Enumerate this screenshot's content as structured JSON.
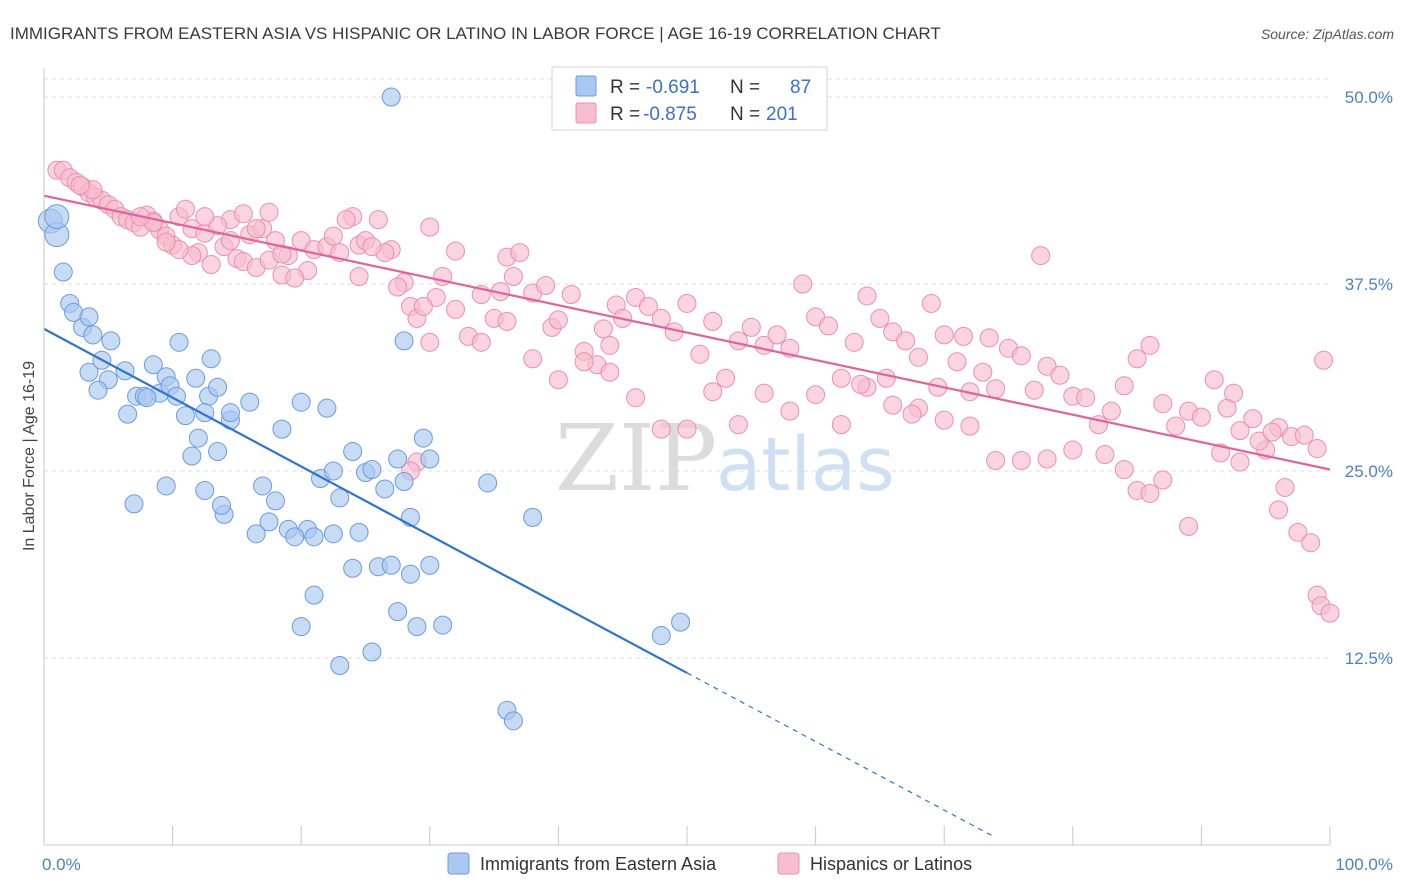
{
  "chart_data": {
    "type": "scatter",
    "title": "IMMIGRANTS FROM EASTERN ASIA VS HISPANIC OR LATINO IN LABOR FORCE | AGE 16-19 CORRELATION CHART",
    "source": "Source: ZipAtlas.com",
    "ylabel": "In Labor Force | Age 16-19",
    "xlim": [
      0,
      100
    ],
    "ylim": [
      0,
      52
    ],
    "x_tick_labels": [
      "0.0%",
      "100.0%"
    ],
    "y_ticks": [
      {
        "value": 12.5,
        "label": "12.5%"
      },
      {
        "value": 25.0,
        "label": "25.0%"
      },
      {
        "value": 37.5,
        "label": "37.5%"
      },
      {
        "value": 50.0,
        "label": "50.0%"
      }
    ],
    "watermark": {
      "zip": "ZIP",
      "atlas": "atlas"
    },
    "legend": {
      "rows": [
        {
          "r_label": "R = ",
          "r_value": "-0.691",
          "n_label": "N = ",
          "n_value": "87"
        },
        {
          "r_label": "R = ",
          "r_value": "-0.875",
          "n_label": "N = ",
          "n_value": "201"
        }
      ]
    },
    "series": [
      {
        "name": "Immigrants from Eastern Asia",
        "fill": "#a9c7ef",
        "stroke": "#6b9be0",
        "line_color": "#2f74d0",
        "trend": {
          "x1": 0,
          "y1": 34.5,
          "x2": 50,
          "y2": 11.5,
          "dash_to_x": 74,
          "dash_to_y": 0.5
        },
        "points": [
          [
            0.5,
            41.7
          ],
          [
            1.0,
            40.8
          ],
          [
            1.5,
            38.3
          ],
          [
            2.0,
            36.2
          ],
          [
            2.3,
            35.6
          ],
          [
            3.0,
            34.6
          ],
          [
            3.8,
            34.1
          ],
          [
            5.2,
            33.7
          ],
          [
            3.5,
            31.6
          ],
          [
            4.5,
            32.4
          ],
          [
            5.0,
            31.1
          ],
          [
            4.2,
            30.4
          ],
          [
            6.3,
            31.7
          ],
          [
            7.2,
            30.0
          ],
          [
            7.8,
            30.0
          ],
          [
            8.5,
            32.1
          ],
          [
            9.5,
            31.3
          ],
          [
            10.5,
            33.6
          ],
          [
            11.8,
            31.2
          ],
          [
            9.0,
            30.2
          ],
          [
            9.8,
            30.7
          ],
          [
            10.3,
            30.0
          ],
          [
            12.8,
            30.0
          ],
          [
            13.5,
            30.6
          ],
          [
            6.5,
            28.8
          ],
          [
            11.0,
            28.7
          ],
          [
            12.5,
            28.9
          ],
          [
            14.5,
            28.4
          ],
          [
            16.0,
            29.6
          ],
          [
            18.5,
            27.8
          ],
          [
            20.0,
            29.6
          ],
          [
            22.0,
            29.2
          ],
          [
            12.0,
            27.2
          ],
          [
            11.5,
            26.0
          ],
          [
            13.5,
            26.3
          ],
          [
            21.5,
            24.5
          ],
          [
            24.0,
            26.3
          ],
          [
            22.5,
            25.0
          ],
          [
            25.0,
            24.9
          ],
          [
            23.0,
            23.2
          ],
          [
            9.5,
            24.0
          ],
          [
            12.5,
            23.7
          ],
          [
            14.0,
            22.1
          ],
          [
            13.8,
            22.7
          ],
          [
            18.0,
            23.0
          ],
          [
            17.5,
            21.6
          ],
          [
            19.0,
            21.1
          ],
          [
            20.5,
            21.1
          ],
          [
            7.0,
            22.8
          ],
          [
            16.5,
            20.8
          ],
          [
            19.5,
            20.6
          ],
          [
            21.0,
            20.6
          ],
          [
            22.5,
            20.8
          ],
          [
            24.5,
            20.9
          ],
          [
            25.5,
            25.1
          ],
          [
            26.5,
            23.8
          ],
          [
            28.5,
            21.9
          ],
          [
            27.5,
            25.8
          ],
          [
            28.0,
            24.3
          ],
          [
            30.0,
            25.8
          ],
          [
            29.5,
            27.2
          ],
          [
            24.0,
            18.5
          ],
          [
            26.0,
            18.6
          ],
          [
            27.0,
            18.7
          ],
          [
            28.5,
            18.1
          ],
          [
            30.0,
            18.7
          ],
          [
            21.0,
            16.7
          ],
          [
            27.5,
            15.6
          ],
          [
            20.0,
            14.6
          ],
          [
            23.0,
            12.0
          ],
          [
            25.5,
            12.9
          ],
          [
            31.0,
            14.7
          ],
          [
            29.0,
            14.6
          ],
          [
            48.0,
            14.0
          ],
          [
            49.5,
            14.9
          ],
          [
            38.0,
            21.9
          ],
          [
            34.5,
            24.2
          ],
          [
            28.0,
            33.7
          ],
          [
            13.0,
            32.5
          ],
          [
            14.5,
            28.9
          ],
          [
            1.0,
            42.0
          ],
          [
            3.5,
            35.3
          ],
          [
            8.0,
            29.9
          ],
          [
            17.0,
            24.0
          ],
          [
            36.0,
            9.0
          ],
          [
            36.5,
            8.3
          ],
          [
            27.0,
            50.0
          ]
        ]
      },
      {
        "name": "Hispanics or Latinos",
        "fill": "#f7bdd0",
        "stroke": "#ec8fae",
        "line_color": "#e0649a",
        "trend": {
          "x1": 0,
          "y1": 43.4,
          "x2": 100,
          "y2": 25.1
        },
        "points": [
          [
            1.0,
            45.1
          ],
          [
            1.5,
            45.1
          ],
          [
            2.0,
            44.6
          ],
          [
            2.5,
            44.3
          ],
          [
            3.0,
            44.0
          ],
          [
            3.5,
            43.6
          ],
          [
            4.0,
            43.3
          ],
          [
            4.5,
            43.1
          ],
          [
            5.0,
            42.8
          ],
          [
            5.5,
            42.5
          ],
          [
            6.0,
            42.0
          ],
          [
            6.5,
            41.8
          ],
          [
            7.0,
            41.6
          ],
          [
            7.5,
            41.3
          ],
          [
            8.0,
            42.1
          ],
          [
            8.5,
            41.7
          ],
          [
            9.0,
            41.1
          ],
          [
            9.5,
            40.7
          ],
          [
            10.0,
            40.1
          ],
          [
            10.5,
            42.0
          ],
          [
            11.0,
            42.5
          ],
          [
            11.5,
            41.2
          ],
          [
            12.0,
            39.6
          ],
          [
            12.5,
            40.9
          ],
          [
            13.0,
            38.8
          ],
          [
            14.0,
            40.0
          ],
          [
            14.5,
            41.8
          ],
          [
            15.0,
            39.2
          ],
          [
            15.5,
            39.0
          ],
          [
            16.0,
            40.8
          ],
          [
            16.5,
            38.6
          ],
          [
            17.0,
            41.2
          ],
          [
            17.5,
            39.1
          ],
          [
            18.0,
            40.4
          ],
          [
            18.5,
            38.1
          ],
          [
            19.0,
            39.4
          ],
          [
            20.0,
            40.4
          ],
          [
            21.0,
            39.8
          ],
          [
            22.0,
            40.0
          ],
          [
            23.0,
            39.6
          ],
          [
            24.0,
            42.0
          ],
          [
            24.5,
            40.1
          ],
          [
            25.0,
            40.4
          ],
          [
            26.0,
            41.8
          ],
          [
            27.0,
            39.8
          ],
          [
            28.0,
            37.6
          ],
          [
            28.5,
            36.0
          ],
          [
            29.0,
            35.2
          ],
          [
            30.0,
            33.6
          ],
          [
            30.5,
            36.6
          ],
          [
            31.0,
            38.0
          ],
          [
            32.0,
            35.8
          ],
          [
            33.0,
            34.0
          ],
          [
            34.0,
            33.6
          ],
          [
            35.0,
            35.2
          ],
          [
            35.5,
            37.0
          ],
          [
            36.0,
            39.3
          ],
          [
            36.5,
            38.0
          ],
          [
            37.0,
            39.6
          ],
          [
            38.0,
            36.9
          ],
          [
            39.0,
            37.4
          ],
          [
            39.5,
            34.6
          ],
          [
            40.0,
            35.1
          ],
          [
            41.0,
            36.8
          ],
          [
            42.0,
            33.0
          ],
          [
            43.0,
            32.1
          ],
          [
            43.5,
            34.5
          ],
          [
            44.0,
            33.4
          ],
          [
            44.5,
            36.1
          ],
          [
            45.0,
            35.2
          ],
          [
            46.0,
            36.6
          ],
          [
            47.0,
            36.0
          ],
          [
            48.0,
            35.2
          ],
          [
            49.0,
            34.3
          ],
          [
            50.0,
            36.2
          ],
          [
            51.0,
            32.8
          ],
          [
            52.0,
            35.0
          ],
          [
            53.0,
            31.2
          ],
          [
            54.0,
            33.7
          ],
          [
            55.0,
            34.6
          ],
          [
            56.0,
            33.4
          ],
          [
            57.0,
            34.1
          ],
          [
            58.0,
            33.2
          ],
          [
            59.0,
            37.5
          ],
          [
            60.0,
            35.3
          ],
          [
            61.0,
            34.7
          ],
          [
            62.0,
            31.2
          ],
          [
            63.0,
            33.6
          ],
          [
            64.0,
            36.7
          ],
          [
            65.0,
            35.2
          ],
          [
            66.0,
            34.3
          ],
          [
            67.0,
            33.7
          ],
          [
            68.0,
            32.6
          ],
          [
            69.0,
            36.2
          ],
          [
            70.0,
            34.1
          ],
          [
            71.0,
            32.3
          ],
          [
            72.0,
            30.3
          ],
          [
            73.0,
            31.6
          ],
          [
            74.0,
            30.5
          ],
          [
            75.0,
            33.2
          ],
          [
            76.0,
            32.7
          ],
          [
            77.0,
            30.4
          ],
          [
            78.0,
            32.0
          ],
          [
            79.0,
            31.4
          ],
          [
            80.0,
            30.0
          ],
          [
            81.0,
            29.9
          ],
          [
            82.0,
            28.1
          ],
          [
            83.0,
            29.0
          ],
          [
            84.0,
            30.7
          ],
          [
            85.0,
            32.5
          ],
          [
            86.0,
            33.4
          ],
          [
            87.0,
            29.5
          ],
          [
            88.0,
            28.0
          ],
          [
            89.0,
            29.0
          ],
          [
            90.0,
            28.6
          ],
          [
            91.0,
            31.1
          ],
          [
            92.0,
            29.2
          ],
          [
            93.0,
            27.7
          ],
          [
            94.0,
            28.5
          ],
          [
            95.0,
            26.4
          ],
          [
            96.0,
            27.9
          ],
          [
            97.0,
            27.3
          ],
          [
            98.0,
            27.4
          ],
          [
            99.0,
            26.5
          ],
          [
            99.5,
            32.4
          ],
          [
            91.5,
            26.2
          ],
          [
            92.5,
            30.2
          ],
          [
            94.5,
            27.0
          ],
          [
            95.5,
            27.6
          ],
          [
            96.5,
            23.9
          ],
          [
            97.5,
            20.9
          ],
          [
            98.5,
            20.2
          ],
          [
            99.0,
            16.7
          ],
          [
            99.3,
            16.0
          ],
          [
            100.0,
            15.5
          ],
          [
            96.0,
            22.4
          ],
          [
            93.0,
            25.6
          ],
          [
            89.0,
            21.3
          ],
          [
            87.0,
            24.4
          ],
          [
            85.0,
            23.7
          ],
          [
            86.0,
            23.5
          ],
          [
            84.0,
            25.1
          ],
          [
            82.5,
            26.1
          ],
          [
            80.0,
            26.4
          ],
          [
            78.0,
            25.8
          ],
          [
            76.0,
            25.7
          ],
          [
            74.0,
            25.7
          ],
          [
            72.0,
            28.0
          ],
          [
            70.0,
            28.4
          ],
          [
            68.0,
            29.2
          ],
          [
            66.0,
            29.4
          ],
          [
            64.0,
            30.6
          ],
          [
            62.0,
            28.1
          ],
          [
            60.0,
            30.1
          ],
          [
            58.0,
            29.0
          ],
          [
            56.0,
            30.2
          ],
          [
            54.0,
            28.1
          ],
          [
            52.0,
            30.3
          ],
          [
            50.0,
            27.8
          ],
          [
            48.0,
            27.8
          ],
          [
            46.0,
            29.9
          ],
          [
            44.0,
            31.6
          ],
          [
            42.0,
            32.3
          ],
          [
            40.0,
            31.1
          ],
          [
            38.0,
            32.5
          ],
          [
            36.0,
            35.0
          ],
          [
            34.0,
            36.8
          ],
          [
            32.0,
            39.7
          ],
          [
            30.0,
            41.3
          ],
          [
            29.0,
            25.6
          ],
          [
            28.5,
            25.0
          ],
          [
            29.5,
            36.0
          ],
          [
            27.5,
            37.3
          ],
          [
            26.5,
            39.6
          ],
          [
            25.5,
            40.0
          ],
          [
            24.5,
            38.0
          ],
          [
            23.5,
            41.8
          ],
          [
            22.5,
            40.7
          ],
          [
            20.5,
            38.4
          ],
          [
            19.5,
            37.9
          ],
          [
            18.5,
            39.5
          ],
          [
            17.5,
            42.3
          ],
          [
            16.5,
            41.2
          ],
          [
            15.5,
            42.2
          ],
          [
            14.5,
            40.4
          ],
          [
            13.5,
            41.4
          ],
          [
            12.5,
            42.0
          ],
          [
            11.5,
            39.4
          ],
          [
            10.5,
            39.8
          ],
          [
            9.5,
            40.3
          ],
          [
            8.5,
            41.6
          ],
          [
            7.5,
            42.0
          ],
          [
            3.8,
            43.8
          ],
          [
            2.8,
            44.1
          ],
          [
            77.5,
            39.4
          ],
          [
            73.5,
            33.9
          ],
          [
            71.5,
            34.0
          ],
          [
            69.5,
            30.6
          ],
          [
            67.5,
            28.8
          ],
          [
            65.5,
            31.2
          ],
          [
            63.5,
            30.8
          ]
        ]
      }
    ]
  }
}
